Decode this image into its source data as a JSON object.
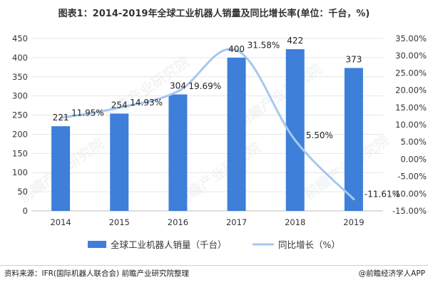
{
  "title": "图表1：2014-2019年全球工业机器人销量及同比增长率(单位：千台，%)",
  "source": "资料来源：IFR(国际机器人联合会) 前瞻产业研究院整理",
  "credit": "@前瞻经济学人APP",
  "watermark": "前瞻产业研究院",
  "colors": {
    "bar": "#3d7fd9",
    "line": "#a6c8ee",
    "grid": "#e6e6e6",
    "text": "#333333"
  },
  "chart_data": {
    "type": "bar",
    "categories": [
      "2014",
      "2015",
      "2016",
      "2017",
      "2018",
      "2019"
    ],
    "series": [
      {
        "name": "全球工业机器人销量（千台）",
        "type": "bar",
        "axis": "left",
        "values": [
          221,
          254,
          304,
          400,
          422,
          373
        ],
        "labels": [
          "221",
          "254",
          "304",
          "400",
          "422",
          "373"
        ]
      },
      {
        "name": "同比增长（%）",
        "type": "line",
        "axis": "right",
        "values": [
          11.95,
          14.93,
          19.69,
          31.58,
          5.5,
          -11.61
        ],
        "labels": [
          "11.95%",
          "14.93%",
          "19.69%",
          "31.58%",
          "5.50%",
          "-11.61%"
        ]
      }
    ],
    "y_left": {
      "min": 0,
      "max": 450,
      "ticks": [
        "0",
        "50",
        "100",
        "150",
        "200",
        "250",
        "300",
        "350",
        "400",
        "450"
      ]
    },
    "y_right": {
      "min": -15,
      "max": 35,
      "ticks": [
        "-15.00%",
        "-10.00%",
        "-5.00%",
        "0.00%",
        "5.00%",
        "10.00%",
        "15.00%",
        "20.00%",
        "25.00%",
        "30.00%",
        "35.00%"
      ]
    },
    "grid": true,
    "legend_position": "bottom"
  }
}
